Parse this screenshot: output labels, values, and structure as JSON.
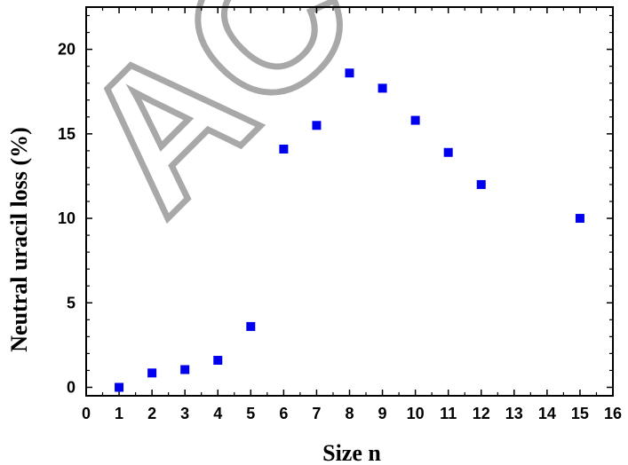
{
  "watermark": "ACC",
  "colors": {
    "marker": "#0000ee",
    "axis": "#000000",
    "watermark_stroke": "#9a9a9a"
  },
  "chart_data": {
    "type": "scatter",
    "title": "",
    "xlabel": "Size n",
    "ylabel": "Neutral uracil loss (%)",
    "xlim": [
      0,
      16
    ],
    "ylim": [
      -0.5,
      22.5
    ],
    "xticks": [
      0,
      1,
      2,
      3,
      4,
      5,
      6,
      7,
      8,
      9,
      10,
      11,
      12,
      13,
      14,
      15,
      16
    ],
    "yticks": [
      0,
      5,
      10,
      15,
      20
    ],
    "grid": false,
    "legend": "none",
    "series": [
      {
        "marker": "square",
        "color": "#0000ee",
        "x": [
          1,
          2,
          3,
          4,
          5,
          6,
          7,
          8,
          9,
          10,
          11,
          12,
          15
        ],
        "y": [
          0.0,
          0.85,
          1.05,
          1.6,
          3.6,
          14.1,
          15.5,
          18.6,
          17.7,
          15.8,
          13.9,
          12.0,
          10.0
        ]
      }
    ]
  }
}
